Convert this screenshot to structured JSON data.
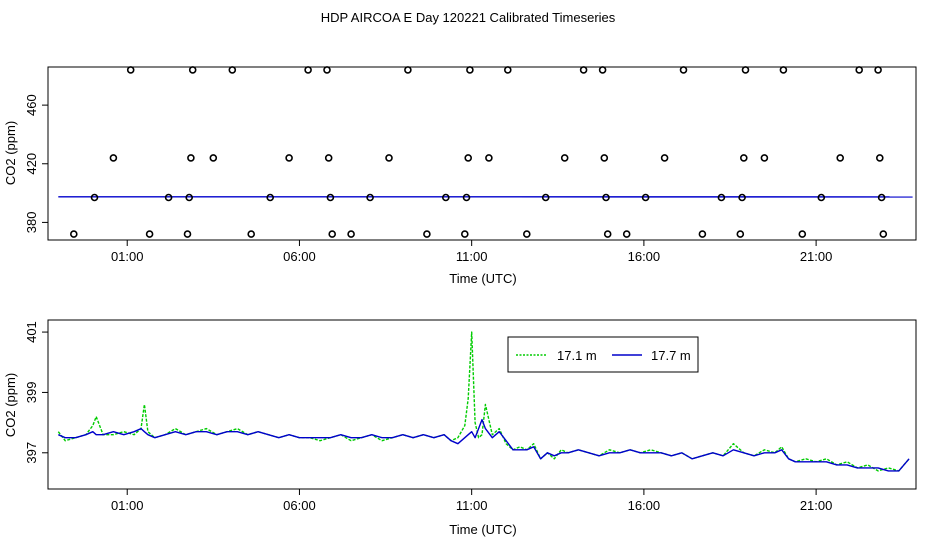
{
  "title": "HDP AIRCOA E  Day 120221  Calibrated Timeseries",
  "colors": {
    "series_1": "#00cc00",
    "series_2": "#0000cc",
    "axis": "#000000"
  },
  "chart_data": [
    {
      "type": "scatter",
      "xlabel": "Time (UTC)",
      "ylabel": "CO2 (ppm)",
      "xlim": [
        -1.3,
        23.9
      ],
      "ylim": [
        368,
        486
      ],
      "x_ticks": [
        1,
        6,
        11,
        16,
        21
      ],
      "x_tick_labels": [
        "01:00",
        "06:00",
        "11:00",
        "16:00",
        "21:00"
      ],
      "y_ticks": [
        380,
        420,
        460
      ],
      "y_tick_labels": [
        "380",
        "420",
        "460"
      ],
      "grid": false,
      "points": [
        [
          -0.55,
          372
        ],
        [
          0.05,
          397
        ],
        [
          0.6,
          424
        ],
        [
          1.1,
          484
        ],
        [
          1.65,
          372
        ],
        [
          2.2,
          397
        ],
        [
          2.75,
          372
        ],
        [
          2.8,
          397
        ],
        [
          2.85,
          424
        ],
        [
          2.9,
          484
        ],
        [
          3.5,
          424
        ],
        [
          4.05,
          484
        ],
        [
          4.6,
          372
        ],
        [
          5.15,
          397
        ],
        [
          5.7,
          424
        ],
        [
          6.25,
          484
        ],
        [
          6.8,
          484
        ],
        [
          6.85,
          424
        ],
        [
          6.9,
          397
        ],
        [
          6.95,
          372
        ],
        [
          7.5,
          372
        ],
        [
          8.05,
          397
        ],
        [
          8.6,
          424
        ],
        [
          9.15,
          484
        ],
        [
          9.7,
          372
        ],
        [
          10.25,
          397
        ],
        [
          10.8,
          372
        ],
        [
          10.85,
          397
        ],
        [
          10.9,
          424
        ],
        [
          10.95,
          484
        ],
        [
          11.5,
          424
        ],
        [
          12.05,
          484
        ],
        [
          12.6,
          372
        ],
        [
          13.15,
          397
        ],
        [
          13.7,
          424
        ],
        [
          14.25,
          484
        ],
        [
          14.8,
          484
        ],
        [
          14.85,
          424
        ],
        [
          14.9,
          397
        ],
        [
          14.95,
          372
        ],
        [
          15.5,
          372
        ],
        [
          16.05,
          397
        ],
        [
          16.6,
          424
        ],
        [
          17.15,
          484
        ],
        [
          17.7,
          372
        ],
        [
          18.25,
          397
        ],
        [
          18.8,
          372
        ],
        [
          18.85,
          397
        ],
        [
          18.9,
          424
        ],
        [
          18.95,
          484
        ],
        [
          19.5,
          424
        ],
        [
          20.05,
          484
        ],
        [
          20.6,
          372
        ],
        [
          21.15,
          397
        ],
        [
          21.7,
          424
        ],
        [
          22.25,
          484
        ],
        [
          22.8,
          484
        ],
        [
          22.85,
          424
        ],
        [
          22.9,
          397
        ],
        [
          22.95,
          372
        ]
      ],
      "series": [
        {
          "x": [
            -1,
            23.8
          ],
          "values": [
            397.5,
            397.4
          ]
        }
      ]
    },
    {
      "type": "line",
      "xlabel": "Time (UTC)",
      "ylabel": "CO2 (ppm)",
      "xlim": [
        -1.3,
        23.9
      ],
      "ylim": [
        395.8,
        401.4
      ],
      "x_ticks": [
        1,
        6,
        11,
        16,
        21
      ],
      "x_tick_labels": [
        "01:00",
        "06:00",
        "11:00",
        "16:00",
        "21:00"
      ],
      "y_ticks": [
        397,
        399,
        401
      ],
      "y_tick_labels": [
        "397",
        "399",
        "401"
      ],
      "grid": false,
      "legend_position": "top-center",
      "series": [
        {
          "name": "17.1 m",
          "x": [
            -1.0,
            -0.8,
            -0.5,
            -0.2,
            0.0,
            0.1,
            0.3,
            0.6,
            0.9,
            1.2,
            1.4,
            1.5,
            1.6,
            1.8,
            2.1,
            2.4,
            2.7,
            3.0,
            3.3,
            3.6,
            3.9,
            4.2,
            4.5,
            4.8,
            5.1,
            5.4,
            5.7,
            6.0,
            6.3,
            6.6,
            6.9,
            7.2,
            7.5,
            7.8,
            8.1,
            8.4,
            8.7,
            9.0,
            9.3,
            9.6,
            9.9,
            10.2,
            10.4,
            10.6,
            10.8,
            10.9,
            11.0,
            11.1,
            11.2,
            11.3,
            11.4,
            11.6,
            11.8,
            12.0,
            12.2,
            12.4,
            12.6,
            12.8,
            13.0,
            13.2,
            13.4,
            13.6,
            13.8,
            14.1,
            14.4,
            14.7,
            15.0,
            15.3,
            15.6,
            15.9,
            16.2,
            16.5,
            16.8,
            17.1,
            17.4,
            17.7,
            18.0,
            18.3,
            18.6,
            18.9,
            19.2,
            19.5,
            19.8,
            20.0,
            20.2,
            20.4,
            20.7,
            21.0,
            21.3,
            21.6,
            21.9,
            22.2,
            22.5,
            22.8,
            23.1,
            23.4,
            23.7
          ],
          "values": [
            397.7,
            397.4,
            397.5,
            397.6,
            397.9,
            398.2,
            397.6,
            397.6,
            397.7,
            397.6,
            397.8,
            398.6,
            397.7,
            397.5,
            397.6,
            397.8,
            397.6,
            397.7,
            397.8,
            397.6,
            397.7,
            397.8,
            397.6,
            397.7,
            397.6,
            397.5,
            397.6,
            397.5,
            397.5,
            397.4,
            397.5,
            397.6,
            397.4,
            397.5,
            397.6,
            397.4,
            397.5,
            397.6,
            397.5,
            397.6,
            397.5,
            397.6,
            397.4,
            397.5,
            397.9,
            398.8,
            401.0,
            398.0,
            397.5,
            397.6,
            398.6,
            397.6,
            397.8,
            397.3,
            397.1,
            397.2,
            397.1,
            397.3,
            396.8,
            397.0,
            396.8,
            397.1,
            397.0,
            397.1,
            397.0,
            396.9,
            397.1,
            397.0,
            397.1,
            397.0,
            397.1,
            397.0,
            396.9,
            397.0,
            396.8,
            396.9,
            397.0,
            396.9,
            397.3,
            397.0,
            396.9,
            397.1,
            397.0,
            397.2,
            396.8,
            396.7,
            396.8,
            396.7,
            396.8,
            396.6,
            396.7,
            396.5,
            396.6,
            396.4,
            396.5,
            396.4,
            396.8
          ]
        },
        {
          "name": "17.7 m",
          "x": [
            -1.0,
            -0.8,
            -0.5,
            -0.2,
            0.0,
            0.1,
            0.3,
            0.6,
            0.9,
            1.2,
            1.4,
            1.5,
            1.6,
            1.8,
            2.1,
            2.4,
            2.7,
            3.0,
            3.3,
            3.6,
            3.9,
            4.2,
            4.5,
            4.8,
            5.1,
            5.4,
            5.7,
            6.0,
            6.3,
            6.6,
            6.9,
            7.2,
            7.5,
            7.8,
            8.1,
            8.4,
            8.7,
            9.0,
            9.3,
            9.6,
            9.9,
            10.2,
            10.4,
            10.6,
            10.8,
            10.9,
            11.0,
            11.1,
            11.2,
            11.3,
            11.4,
            11.6,
            11.8,
            12.0,
            12.2,
            12.4,
            12.6,
            12.8,
            13.0,
            13.2,
            13.4,
            13.6,
            13.8,
            14.1,
            14.4,
            14.7,
            15.0,
            15.3,
            15.6,
            15.9,
            16.2,
            16.5,
            16.8,
            17.1,
            17.4,
            17.7,
            18.0,
            18.3,
            18.6,
            18.9,
            19.2,
            19.5,
            19.8,
            20.0,
            20.2,
            20.4,
            20.7,
            21.0,
            21.3,
            21.6,
            21.9,
            22.2,
            22.5,
            22.8,
            23.1,
            23.4,
            23.7
          ],
          "values": [
            397.6,
            397.5,
            397.5,
            397.6,
            397.7,
            397.6,
            397.6,
            397.7,
            397.6,
            397.7,
            397.8,
            397.7,
            397.6,
            397.5,
            397.6,
            397.7,
            397.6,
            397.7,
            397.7,
            397.6,
            397.7,
            397.7,
            397.6,
            397.7,
            397.6,
            397.5,
            397.6,
            397.5,
            397.5,
            397.5,
            397.5,
            397.6,
            397.5,
            397.5,
            397.6,
            397.5,
            397.5,
            397.6,
            397.5,
            397.6,
            397.5,
            397.6,
            397.4,
            397.3,
            397.5,
            397.6,
            397.7,
            397.5,
            397.8,
            398.1,
            397.8,
            397.5,
            397.7,
            397.4,
            397.1,
            397.1,
            397.1,
            397.2,
            396.8,
            397.0,
            396.9,
            397.0,
            397.0,
            397.1,
            397.0,
            396.9,
            397.0,
            397.0,
            397.1,
            397.0,
            397.0,
            397.0,
            396.9,
            397.0,
            396.8,
            396.9,
            397.0,
            396.9,
            397.1,
            397.0,
            396.9,
            397.0,
            397.0,
            397.1,
            396.8,
            396.7,
            396.7,
            396.7,
            396.7,
            396.6,
            396.6,
            396.5,
            396.5,
            396.5,
            396.4,
            396.4,
            396.8
          ]
        }
      ]
    }
  ]
}
